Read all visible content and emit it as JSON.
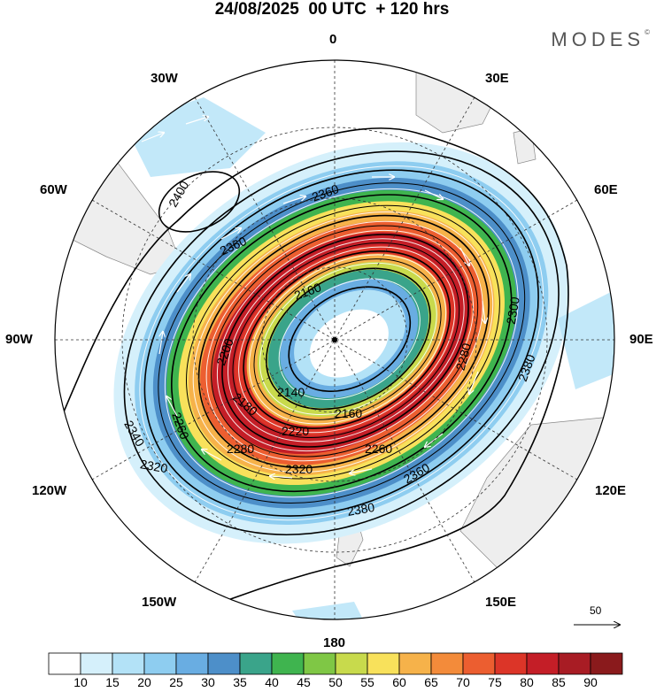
{
  "title": "24/08/2025  00 UTC  + 120 hrs",
  "brand": {
    "text": "MODES",
    "mark": "©"
  },
  "longitude_labels": {
    "lon0": "0",
    "lon30e": "30E",
    "lon60e": "60E",
    "lon90e": "90E",
    "lon120e": "120E",
    "lon150e": "150E",
    "lon180": "180",
    "lon150w": "150W",
    "lon120w": "120W",
    "lon90w": "90W",
    "lon60w": "60W",
    "lon30w": "30W"
  },
  "contours": {
    "c2400": "2400",
    "c2380a": "2380",
    "c2380b": "2380",
    "c2360a": "2360",
    "c2360b": "2360",
    "c2360c": "2360",
    "c2340a": "2340",
    "c2320a": "2320",
    "c2320b": "2320",
    "c2300": "2300",
    "c2280a": "2280",
    "c2280b": "2280",
    "c2260a": "2260",
    "c2260b": "2260",
    "c2220": "2220",
    "c2200": "2200",
    "c2180": "2180",
    "c2160a": "2160",
    "c2160b": "2160",
    "c2140": "2140"
  },
  "wind_scale": {
    "label": "50"
  },
  "colorbar": {
    "ticks": [
      "10",
      "15",
      "20",
      "25",
      "30",
      "35",
      "40",
      "45",
      "50",
      "55",
      "60",
      "65",
      "70",
      "75",
      "80",
      "85",
      "90"
    ],
    "colors": [
      "#ffffff",
      "#d5f0fb",
      "#b3e2f7",
      "#8ecdf0",
      "#69ade2",
      "#4d8fc9",
      "#3aa48a",
      "#3fb44f",
      "#7fc745",
      "#c8da4c",
      "#f8e15b",
      "#f6b24a",
      "#f38b3a",
      "#ec5e30",
      "#dc3528",
      "#c41e27",
      "#a81c24",
      "#8a1a1c"
    ]
  }
}
